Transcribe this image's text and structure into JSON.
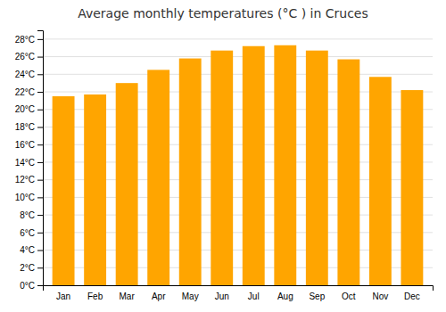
{
  "chart_data": {
    "type": "bar",
    "title": "Average monthly temperatures (°C ) in Cruces",
    "categories": [
      "Jan",
      "Feb",
      "Mar",
      "Apr",
      "May",
      "Jun",
      "Jul",
      "Aug",
      "Sep",
      "Oct",
      "Nov",
      "Dec"
    ],
    "values": [
      21.5,
      21.7,
      23.0,
      24.5,
      25.8,
      26.7,
      27.2,
      27.3,
      26.7,
      25.7,
      23.7,
      22.2
    ],
    "color": "#FFA500",
    "ylim": [
      0,
      29
    ],
    "yticks": [
      {
        "value": 0,
        "label": "0°C"
      },
      {
        "value": 2,
        "label": "2°C"
      },
      {
        "value": 4,
        "label": "4°C"
      },
      {
        "value": 6,
        "label": "6°C"
      },
      {
        "value": 8,
        "label": "8°C"
      },
      {
        "value": 10,
        "label": "10°C"
      },
      {
        "value": 12,
        "label": "12°C"
      },
      {
        "value": 14,
        "label": "14°C"
      },
      {
        "value": 16,
        "label": "16°C"
      },
      {
        "value": 18,
        "label": "18°C"
      },
      {
        "value": 20,
        "label": "20°C"
      },
      {
        "value": 22,
        "label": "22°C"
      },
      {
        "value": 24,
        "label": "24°C"
      },
      {
        "value": 26,
        "label": "26°C"
      },
      {
        "value": 28,
        "label": "28°C"
      }
    ],
    "grid": true
  }
}
